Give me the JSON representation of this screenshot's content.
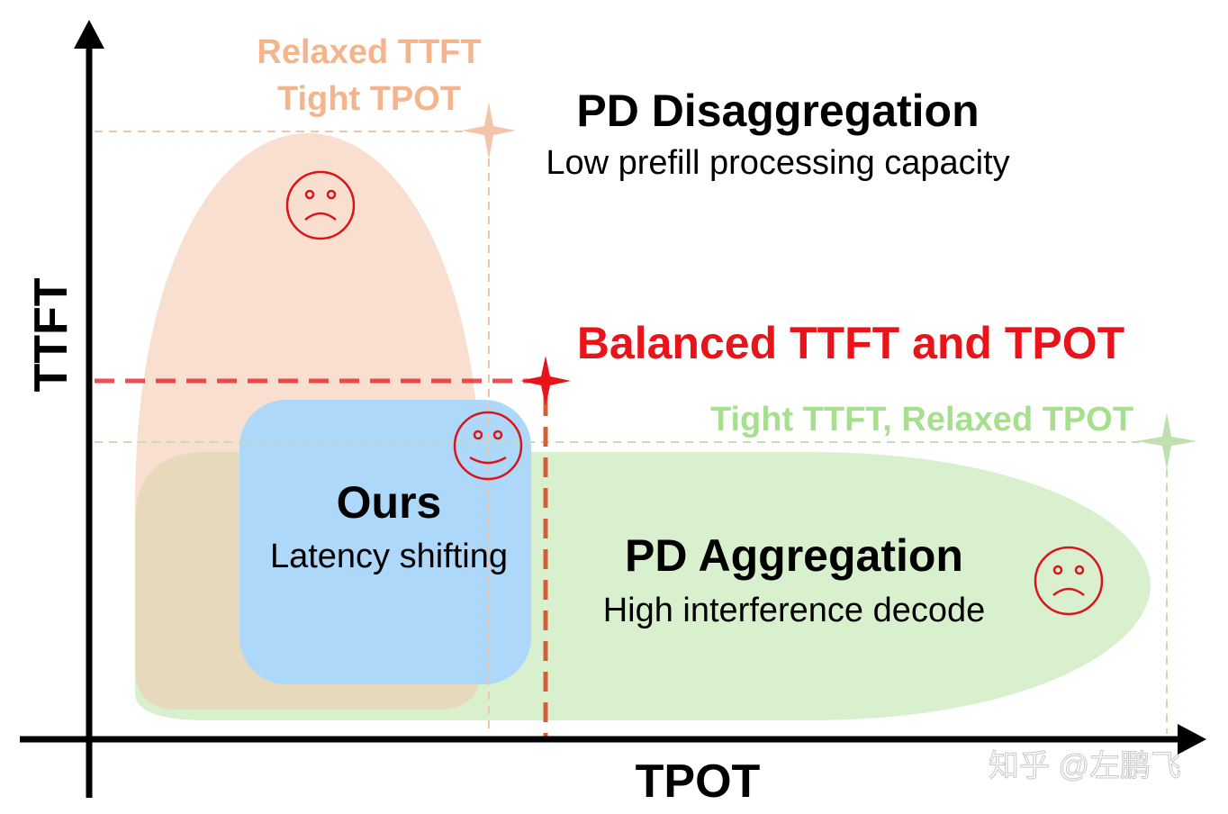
{
  "axes": {
    "y_label": "TTFT",
    "x_label": "TPOT"
  },
  "regions": {
    "disaggregation": {
      "title": "PD Disaggregation",
      "subtitle": "Low prefill processing capacity",
      "corner_label_1": "Relaxed TTFT",
      "corner_label_2": "Tight TPOT",
      "face": "sad-face-icon"
    },
    "aggregation": {
      "title": "PD Aggregation",
      "subtitle": "High interference decode",
      "corner_label": "Tight TTFT, Relaxed TPOT",
      "face": "sad-face-icon"
    },
    "ours": {
      "title": "Ours",
      "subtitle": "Latency shifting",
      "face": "happy-face-icon"
    }
  },
  "balanced_label": "Balanced TTFT and TPOT",
  "watermark": "知乎 @左鹏飞",
  "colors": {
    "orange_region": "#f9dfd0",
    "green_region": "#d9f0cf",
    "overlap_region": "#e6d9bc",
    "ours_region": "#add8fa",
    "orange_text": "#f4b48c",
    "green_text": "#a6e08f",
    "balanced_red": "#e8141a",
    "face_red": "#d9141a"
  }
}
